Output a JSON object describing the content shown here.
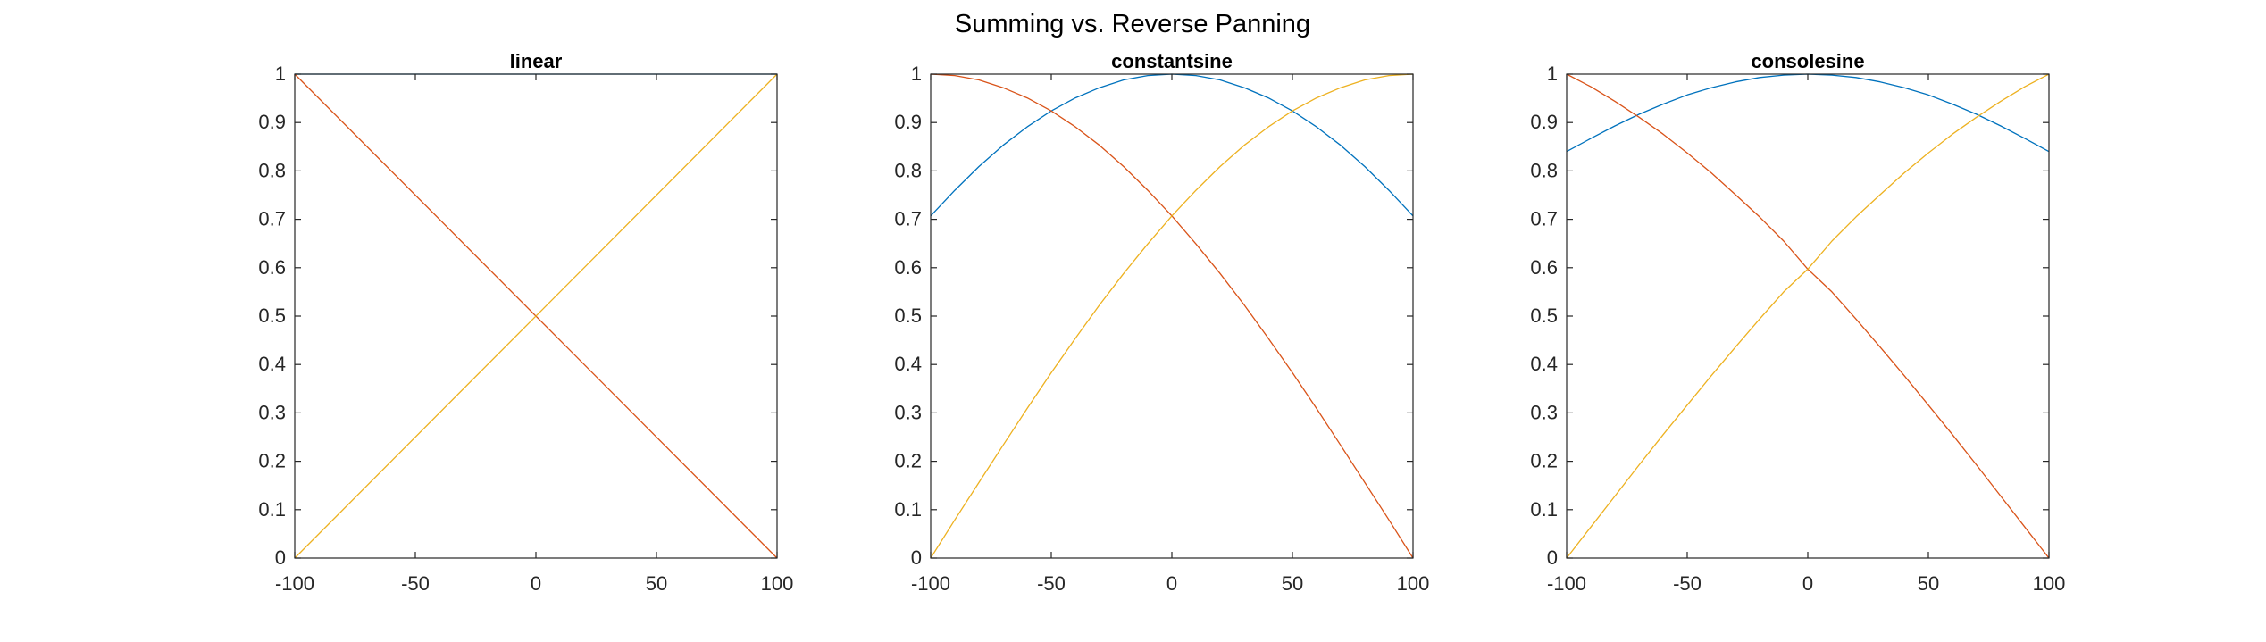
{
  "figure": {
    "title": "Summing vs. Reverse Panning"
  },
  "chart_data": [
    {
      "type": "line",
      "title": "linear",
      "xlabel": "",
      "ylabel": "",
      "xlim": [
        -100,
        100
      ],
      "ylim": [
        0,
        1
      ],
      "xticks": [
        -100,
        -50,
        0,
        50,
        100
      ],
      "yticks": [
        0,
        0.1,
        0.2,
        0.3,
        0.4,
        0.5,
        0.6,
        0.7,
        0.8,
        0.9,
        1
      ],
      "grid": false,
      "x": [
        -100,
        100
      ],
      "series": [
        {
          "color": "#0072BD",
          "values": [
            1,
            1
          ]
        },
        {
          "color": "#D95319",
          "values": [
            1,
            0
          ]
        },
        {
          "color": "#EDB120",
          "values": [
            0,
            1
          ]
        }
      ]
    },
    {
      "type": "line",
      "title": "constantsine",
      "xlabel": "",
      "ylabel": "",
      "xlim": [
        -100,
        100
      ],
      "ylim": [
        0,
        1
      ],
      "xticks": [
        -100,
        -50,
        0,
        50,
        100
      ],
      "yticks": [
        0,
        0.1,
        0.2,
        0.3,
        0.4,
        0.5,
        0.6,
        0.7,
        0.8,
        0.9,
        1
      ],
      "grid": false,
      "x": [
        -100,
        -90,
        -80,
        -70,
        -60,
        -50,
        -40,
        -30,
        -20,
        -10,
        0,
        10,
        20,
        30,
        40,
        50,
        60,
        70,
        80,
        90,
        100
      ],
      "series": [
        {
          "color": "#0072BD",
          "values": [
            0.707,
            0.76,
            0.809,
            0.853,
            0.891,
            0.924,
            0.951,
            0.972,
            0.988,
            0.997,
            1,
            0.997,
            0.988,
            0.972,
            0.951,
            0.924,
            0.891,
            0.853,
            0.809,
            0.76,
            0.707
          ]
        },
        {
          "color": "#D95319",
          "values": [
            1,
            0.997,
            0.988,
            0.972,
            0.951,
            0.924,
            0.891,
            0.853,
            0.809,
            0.76,
            0.707,
            0.649,
            0.588,
            0.523,
            0.454,
            0.383,
            0.309,
            0.233,
            0.156,
            0.079,
            0
          ]
        },
        {
          "color": "#EDB120",
          "values": [
            0,
            0.079,
            0.156,
            0.233,
            0.309,
            0.383,
            0.454,
            0.523,
            0.588,
            0.649,
            0.707,
            0.76,
            0.809,
            0.853,
            0.891,
            0.924,
            0.951,
            0.972,
            0.988,
            0.997,
            1
          ]
        }
      ]
    },
    {
      "type": "line",
      "title": "consolesine",
      "xlabel": "",
      "ylabel": "",
      "xlim": [
        -100,
        100
      ],
      "ylim": [
        0,
        1
      ],
      "xticks": [
        -100,
        -50,
        0,
        50,
        100
      ],
      "yticks": [
        0,
        0.1,
        0.2,
        0.3,
        0.4,
        0.5,
        0.6,
        0.7,
        0.8,
        0.9,
        1
      ],
      "grid": false,
      "x": [
        -100,
        -90,
        -80,
        -70,
        -60,
        -50,
        -40,
        -30,
        -20,
        -10,
        0,
        10,
        20,
        30,
        40,
        50,
        60,
        70,
        80,
        90,
        100
      ],
      "series": [
        {
          "color": "#0072BD",
          "values": [
            0.84,
            0.867,
            0.893,
            0.917,
            0.938,
            0.957,
            0.972,
            0.984,
            0.993,
            0.998,
            1,
            0.998,
            0.993,
            0.984,
            0.972,
            0.957,
            0.938,
            0.917,
            0.893,
            0.867,
            0.84
          ]
        },
        {
          "color": "#D95319",
          "values": [
            1,
            0.974,
            0.944,
            0.911,
            0.876,
            0.837,
            0.796,
            0.751,
            0.705,
            0.655,
            0.597,
            0.55,
            0.494,
            0.436,
            0.377,
            0.316,
            0.255,
            0.192,
            0.128,
            0.064,
            0
          ]
        },
        {
          "color": "#EDB120",
          "values": [
            0,
            0.064,
            0.128,
            0.192,
            0.255,
            0.316,
            0.377,
            0.436,
            0.494,
            0.55,
            0.597,
            0.655,
            0.705,
            0.751,
            0.796,
            0.837,
            0.876,
            0.911,
            0.944,
            0.974,
            1
          ]
        }
      ]
    }
  ]
}
